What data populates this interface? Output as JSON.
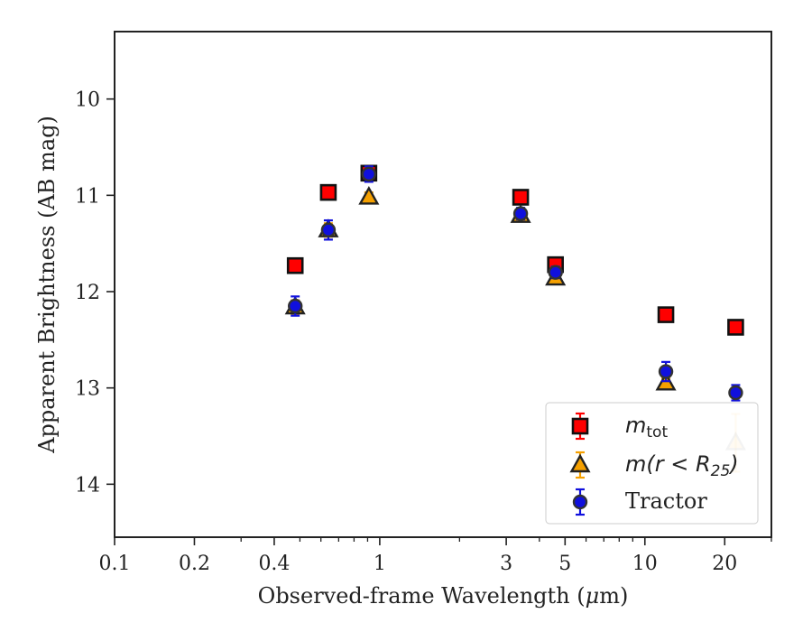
{
  "chart_data": {
    "type": "scatter",
    "xlabel_pre": "Observed-frame Wavelength (",
    "xlabel_mu": "μ",
    "xlabel_post": "m)",
    "ylabel": "Apparent Brightness (AB mag)",
    "xscale": "log",
    "xlim": [
      0.1,
      30
    ],
    "ylim": [
      14.55,
      9.3
    ],
    "y_inverted": true,
    "grid": false,
    "legend_position": "lower-right",
    "x_major_ticks": [
      0.1,
      0.2,
      0.4,
      1,
      3,
      5,
      10,
      20
    ],
    "x_tick_labels": [
      "0.1",
      "0.2",
      "0.4",
      "1",
      "3",
      "5",
      "10",
      "20"
    ],
    "y_ticks": [
      10,
      11,
      12,
      13,
      14
    ],
    "y_tick_labels": [
      "10",
      "11",
      "12",
      "13",
      "14"
    ],
    "colors": {
      "mtot": "#ff0000",
      "mr25": "#f5a000",
      "tractor": "#1010dd"
    },
    "series": [
      {
        "id": "mtot",
        "legend_main": "m",
        "legend_sub": "tot",
        "marker": "square",
        "points": [
          {
            "x": 0.48,
            "y": 11.73,
            "err": 0.07
          },
          {
            "x": 0.64,
            "y": 10.97,
            "err": 0.07
          },
          {
            "x": 0.91,
            "y": 10.77,
            "err": 0.07
          },
          {
            "x": 3.4,
            "y": 11.02,
            "err": 0.07
          },
          {
            "x": 4.6,
            "y": 11.72,
            "err": 0.07
          },
          {
            "x": 12.0,
            "y": 12.24,
            "err": 0.07
          },
          {
            "x": 22.0,
            "y": 12.37,
            "err": 0.07
          }
        ]
      },
      {
        "id": "mr25",
        "legend_pre": "m(r < R",
        "legend_sub": "25",
        "legend_post": ")",
        "marker": "triangle",
        "points": [
          {
            "x": 0.48,
            "y": 12.16,
            "err": 0.07
          },
          {
            "x": 0.64,
            "y": 11.36,
            "err": 0.07
          },
          {
            "x": 0.91,
            "y": 11.02,
            "err": 0.05
          },
          {
            "x": 3.4,
            "y": 11.21,
            "err": 0.05
          },
          {
            "x": 4.6,
            "y": 11.86,
            "err": 0.05
          },
          {
            "x": 12.0,
            "y": 12.95,
            "err": 0.05
          },
          {
            "x": 22.0,
            "y": 13.57,
            "err": 0.3
          }
        ]
      },
      {
        "id": "tractor",
        "legend": "Tractor",
        "marker": "circle",
        "points": [
          {
            "x": 0.48,
            "y": 12.15,
            "err": 0.1
          },
          {
            "x": 0.64,
            "y": 11.36,
            "err": 0.1
          },
          {
            "x": 0.91,
            "y": 10.78,
            "err": 0.08
          },
          {
            "x": 3.4,
            "y": 11.19,
            "err": 0.06
          },
          {
            "x": 4.6,
            "y": 11.8,
            "err": 0.06
          },
          {
            "x": 12.0,
            "y": 12.83,
            "err": 0.1
          },
          {
            "x": 22.0,
            "y": 13.05,
            "err": 0.08
          }
        ]
      }
    ]
  }
}
